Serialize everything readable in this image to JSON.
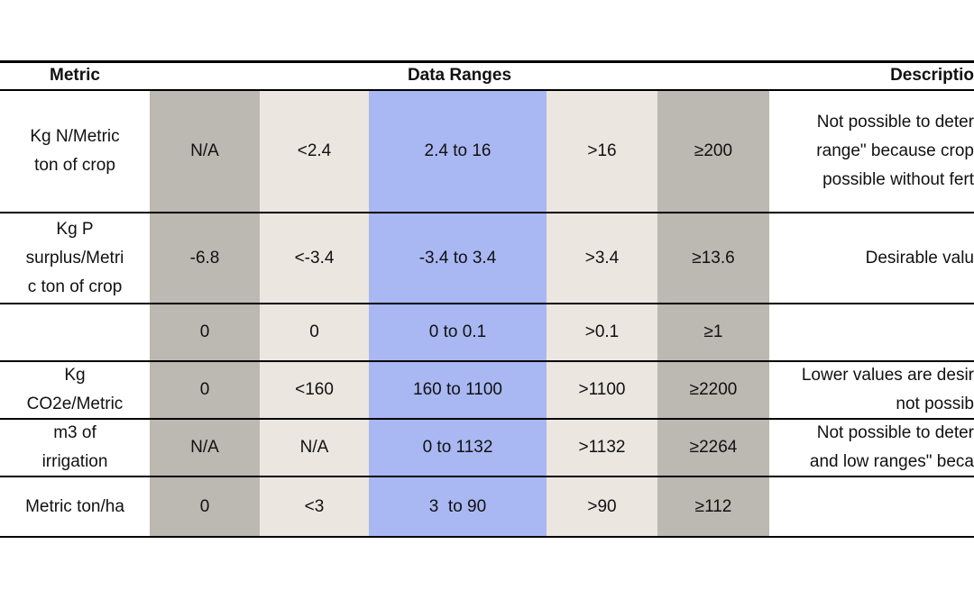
{
  "header": {
    "metric": "Metric",
    "data_ranges": "Data Ranges",
    "description": "Descriptio"
  },
  "rows": [
    {
      "metric": [
        "Kg N/Metric",
        "ton of crop"
      ],
      "ranges": [
        "N/A",
        "<2.4",
        "2.4 to 16",
        ">16",
        "≥200"
      ],
      "description": [
        "Not possible to deter",
        "range\" because crop",
        "possible without fert"
      ]
    },
    {
      "metric": [
        "Kg P",
        "surplus/Metri",
        "c ton of crop"
      ],
      "ranges": [
        "-6.8",
        "<-3.4",
        "-3.4 to 3.4",
        ">3.4",
        "≥13.6"
      ],
      "description": [
        "Desirable valu"
      ]
    },
    {
      "metric": [],
      "ranges": [
        "0",
        "0",
        "0 to 0.1",
        ">0.1",
        "≥1"
      ],
      "description": []
    },
    {
      "metric": [
        "Kg",
        "CO2e/Metric"
      ],
      "ranges": [
        "0",
        "<160",
        "160 to 1100",
        ">1100",
        "≥2200"
      ],
      "description": [
        "Lower values are desir",
        "not possib"
      ]
    },
    {
      "metric": [
        "m3 of",
        "irrigation"
      ],
      "ranges": [
        "N/A",
        "N/A",
        "0 to 1132",
        ">1132",
        "≥2264"
      ],
      "description": [
        "Not possible to deter",
        "and low ranges\" beca"
      ]
    },
    {
      "metric": [
        "Metric ton/ha"
      ],
      "ranges": [
        "0",
        "<3",
        "3  to 90",
        ">90",
        "≥112"
      ],
      "description": []
    }
  ]
}
